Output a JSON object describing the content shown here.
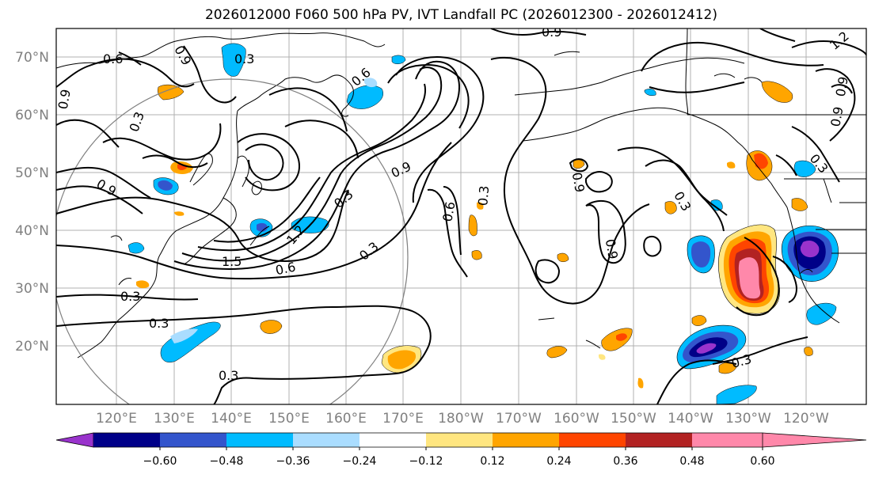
{
  "title": "2026012000 F060 500 hPa PV, IVT Landfall PC (2026012300 - 2026012412)",
  "lat_labels": [
    "70°N",
    "60°N",
    "50°N",
    "40°N",
    "30°N",
    "20°N"
  ],
  "lon_labels": [
    "120°E",
    "130°E",
    "140°E",
    "150°E",
    "160°E",
    "170°E",
    "180°W",
    "170°W",
    "160°W",
    "150°W",
    "140°W",
    "130°W",
    "120°W"
  ],
  "colorbar": {
    "colors": [
      "#9933cc",
      "#000088",
      "#3355cc",
      "#00bbff",
      "#aaddff",
      "#ffffff",
      "#ffe680",
      "#ffa500",
      "#ff4500",
      "#b22222",
      "#ff88aa"
    ],
    "tick_labels": [
      "−0.60",
      "−0.48",
      "−0.36",
      "−0.24",
      "−0.12",
      "0.12",
      "0.24",
      "0.36",
      "0.48",
      "0.60"
    ]
  },
  "contour_labels": [
    "0.3",
    "0.6",
    "0.9",
    "1.2",
    "1.5"
  ],
  "field": "500 hPa PV",
  "shading": "IVT Landfall PC"
}
